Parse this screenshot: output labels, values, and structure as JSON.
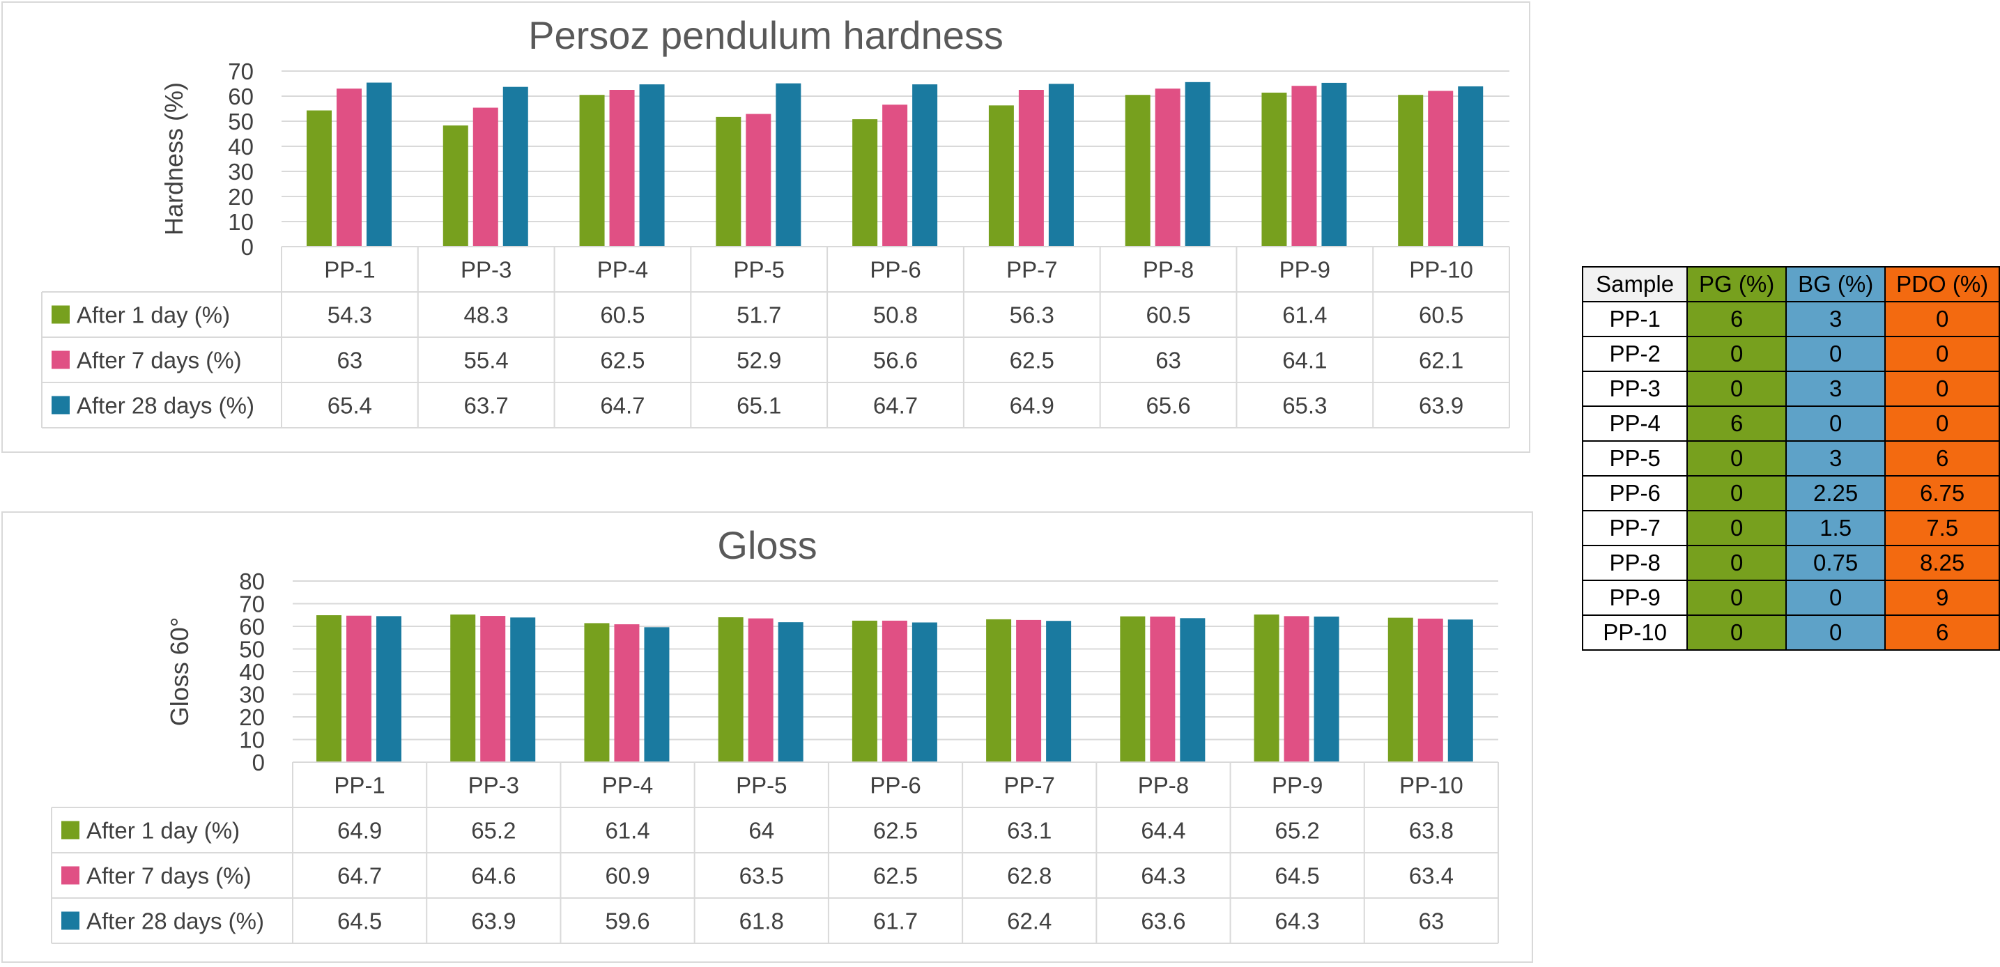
{
  "colors": {
    "after_1_day": "#77a01e",
    "after_7_days": "#e05084",
    "after_28_days": "#1a7aa0",
    "pg": "#77a01e",
    "bg": "#5ea2c8",
    "pdo": "#f36a10"
  },
  "chart_data": [
    {
      "type": "bar",
      "title": "Persoz pendulum hardness",
      "ylabel": "Hardness (%)",
      "xlabel": "",
      "ylim": [
        0,
        70
      ],
      "yticks": [
        0,
        10,
        20,
        30,
        40,
        50,
        60,
        70
      ],
      "grid": true,
      "legend": "data-table",
      "categories": [
        "PP-1",
        "PP-3",
        "PP-4",
        "PP-5",
        "PP-6",
        "PP-7",
        "PP-8",
        "PP-9",
        "PP-10"
      ],
      "series": [
        {
          "name": "After 1 day (%)",
          "values": [
            54.3,
            48.3,
            60.5,
            51.7,
            50.8,
            56.3,
            60.5,
            61.4,
            60.5
          ]
        },
        {
          "name": "After 7 days (%)",
          "values": [
            63,
            55.4,
            62.5,
            52.9,
            56.6,
            62.5,
            63,
            64.1,
            62.1
          ]
        },
        {
          "name": "After 28 days (%)",
          "values": [
            65.4,
            63.7,
            64.7,
            65.1,
            64.7,
            64.9,
            65.6,
            65.3,
            63.9
          ]
        }
      ]
    },
    {
      "type": "bar",
      "title": "Gloss",
      "ylabel": "Gloss 60°",
      "xlabel": "",
      "ylim": [
        0,
        80
      ],
      "yticks": [
        0,
        10,
        20,
        30,
        40,
        50,
        60,
        70,
        80
      ],
      "grid": true,
      "legend": "data-table",
      "categories": [
        "PP-1",
        "PP-3",
        "PP-4",
        "PP-5",
        "PP-6",
        "PP-7",
        "PP-8",
        "PP-9",
        "PP-10"
      ],
      "series": [
        {
          "name": "After 1 day (%)",
          "values": [
            64.9,
            65.2,
            61.4,
            64,
            62.5,
            63.1,
            64.4,
            65.2,
            63.8
          ]
        },
        {
          "name": "After 7 days (%)",
          "values": [
            64.7,
            64.6,
            60.9,
            63.5,
            62.5,
            62.8,
            64.3,
            64.5,
            63.4
          ]
        },
        {
          "name": "After 28 days (%)",
          "values": [
            64.5,
            63.9,
            59.6,
            61.8,
            61.7,
            62.4,
            63.6,
            64.3,
            63
          ]
        }
      ]
    },
    {
      "type": "table",
      "columns": [
        "Sample",
        "PG (%)",
        "BG (%)",
        "PDO (%)"
      ],
      "rows": [
        [
          "PP-1",
          "6",
          "3",
          "0"
        ],
        [
          "PP-2",
          "0",
          "0",
          "0"
        ],
        [
          "PP-3",
          "0",
          "3",
          "0"
        ],
        [
          "PP-4",
          "6",
          "0",
          "0"
        ],
        [
          "PP-5",
          "0",
          "3",
          "6"
        ],
        [
          "PP-6",
          "0",
          "2.25",
          "6.75"
        ],
        [
          "PP-7",
          "0",
          "1.5",
          "7.5"
        ],
        [
          "PP-8",
          "0",
          "0.75",
          "8.25"
        ],
        [
          "PP-9",
          "0",
          "0",
          "9"
        ],
        [
          "PP-10",
          "0",
          "0",
          "6"
        ]
      ]
    }
  ]
}
